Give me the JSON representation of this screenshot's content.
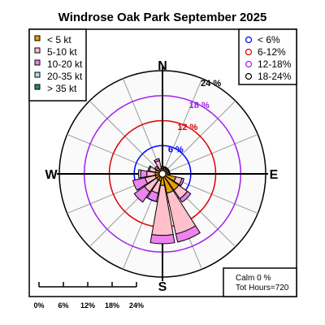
{
  "chart_data": {
    "type": "windrose",
    "title": "Windrose  Oak Park September 2025",
    "cardinals": [
      "N",
      "E",
      "S",
      "W"
    ],
    "speed_bins": [
      {
        "label": "< 5  kt",
        "color": "#e69f00"
      },
      {
        "label": "5-10 kt",
        "color": "#ffc0cb"
      },
      {
        "label": "10-20 kt",
        "color": "#ee82ee"
      },
      {
        "label": "20-35 kt",
        "color": "#b0e0e6"
      },
      {
        "label": "> 35 kt",
        "color": "#2e8b57"
      }
    ],
    "frequency_rings": [
      {
        "label": "< 6%",
        "value": 6,
        "color": "#0000ff"
      },
      {
        "label": "6-12%",
        "value": 12,
        "color": "#dd0000"
      },
      {
        "label": "12-18%",
        "value": 18,
        "color": "#a020f0"
      },
      {
        "label": "18-24%",
        "value": 24,
        "color": "#000000"
      }
    ],
    "ring_labels": [
      "6 %",
      "12 %",
      "18 %",
      "24 %"
    ],
    "max_percent": 24,
    "sectors": [
      {
        "direction": 0,
        "values": [
          0.5,
          0.3,
          0.2,
          0,
          0
        ]
      },
      {
        "direction": 22.5,
        "values": [
          0.5,
          0.3,
          0.2,
          0,
          0
        ]
      },
      {
        "direction": 45,
        "values": [
          0.5,
          0.3,
          0.2,
          0,
          0
        ]
      },
      {
        "direction": 67.5,
        "values": [
          0.5,
          0.3,
          0.2,
          0,
          0
        ]
      },
      {
        "direction": 90,
        "values": [
          0.5,
          0.3,
          0.2,
          0,
          0
        ]
      },
      {
        "direction": 112.5,
        "values": [
          2.5,
          1.5,
          0.5,
          0,
          0
        ]
      },
      {
        "direction": 135,
        "values": [
          4.0,
          2.5,
          1.0,
          0,
          0
        ]
      },
      {
        "direction": 157.5,
        "values": [
          4.0,
          10.0,
          2.0,
          0,
          0
        ]
      },
      {
        "direction": 180,
        "values": [
          2.0,
          12.0,
          2.0,
          0,
          0
        ]
      },
      {
        "direction": 202.5,
        "values": [
          1.0,
          3.0,
          2.0,
          0,
          0
        ]
      },
      {
        "direction": 225,
        "values": [
          1.0,
          3.5,
          3.0,
          0,
          0
        ]
      },
      {
        "direction": 247.5,
        "values": [
          1.0,
          2.5,
          3.0,
          0,
          0
        ]
      },
      {
        "direction": 270,
        "values": [
          1.0,
          2.0,
          1.5,
          0.5,
          0
        ]
      },
      {
        "direction": 292.5,
        "values": [
          1.0,
          1.5,
          0.3,
          0,
          0
        ]
      },
      {
        "direction": 315,
        "values": [
          0.5,
          0.5,
          0.5,
          0,
          0
        ]
      },
      {
        "direction": 337.5,
        "values": [
          0.5,
          2.0,
          0.5,
          0,
          0
        ]
      }
    ],
    "calm_text": "Calm 0 %",
    "hours_text": "Tot Hours=720",
    "scale_bar_labels": [
      "0%",
      "6%",
      "12%",
      "18%",
      "24%"
    ]
  }
}
